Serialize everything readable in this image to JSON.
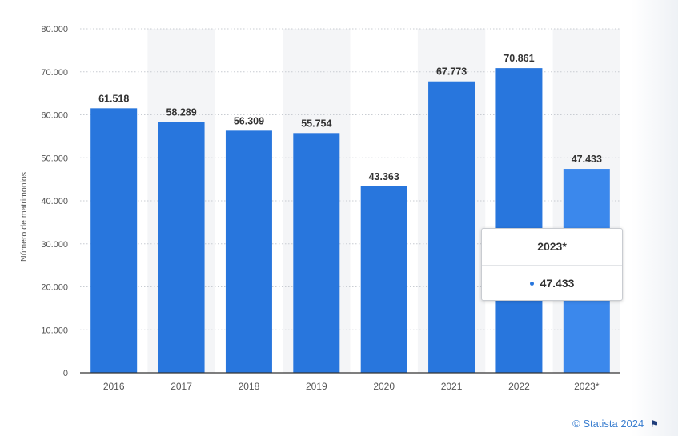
{
  "chart_data": {
    "type": "bar",
    "categories": [
      "2016",
      "2017",
      "2018",
      "2019",
      "2020",
      "2021",
      "2022",
      "2023*"
    ],
    "values": [
      61518,
      58289,
      56309,
      55754,
      43363,
      67773,
      70861,
      47433
    ],
    "value_labels": [
      "61.518",
      "58.289",
      "56.309",
      "55.754",
      "43.363",
      "67.773",
      "70.861",
      "47.433"
    ],
    "ylabel": "Número de matrimonios",
    "xlabel": "",
    "ylim": [
      0,
      80000
    ],
    "yticks": [
      0,
      10000,
      20000,
      30000,
      40000,
      50000,
      60000,
      70000,
      80000
    ],
    "ytick_labels": [
      "0",
      "10.000",
      "20.000",
      "30.000",
      "40.000",
      "50.000",
      "60.000",
      "70.000",
      "80.000"
    ],
    "grid": true,
    "colors": {
      "bar": "#2876dd",
      "bar_highlight": "#3b88ec",
      "band": "#f4f5f7"
    },
    "highlighted_index": 7
  },
  "tooltip": {
    "title": "2023*",
    "value": "47.433"
  },
  "credit": {
    "text": "© Statista 2024",
    "icon": "flag-icon"
  }
}
